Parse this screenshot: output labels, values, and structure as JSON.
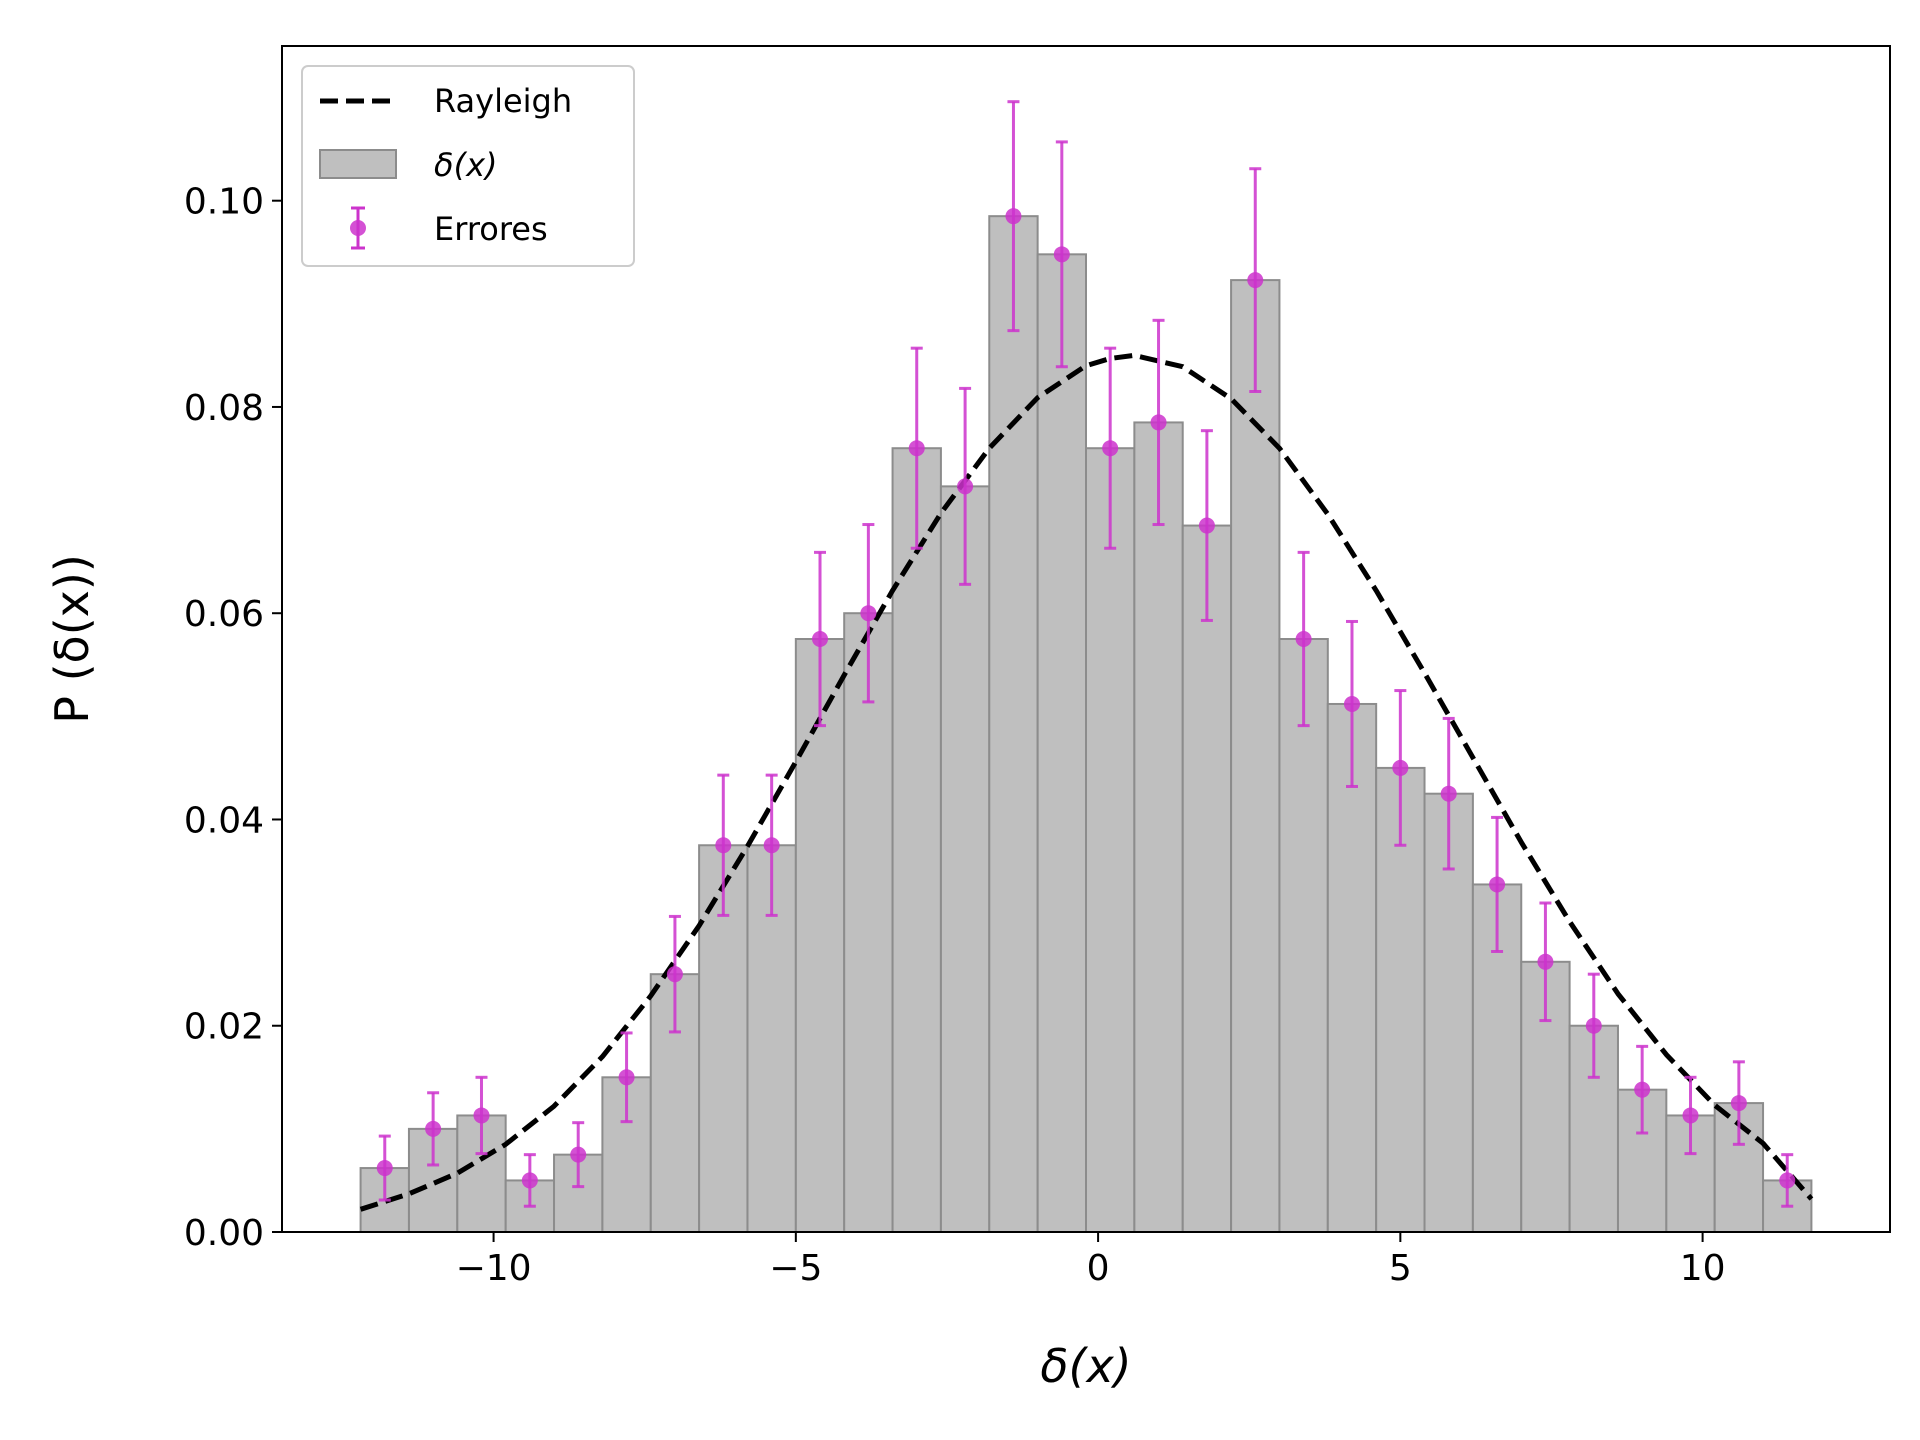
{
  "chart_data": {
    "type": "bar",
    "title": "",
    "xlabel": "δ(x)",
    "ylabel": "P (δ(x))",
    "xlim": [
      -13.5,
      13.1
    ],
    "ylim": [
      0,
      0.115
    ],
    "xticks": [
      -10,
      -5,
      0,
      5,
      10
    ],
    "xtick_labels": [
      "−10",
      "−5",
      "0",
      "5",
      "10"
    ],
    "yticks": [
      0,
      0.02,
      0.04,
      0.06,
      0.08,
      0.1
    ],
    "ytick_labels": [
      "0.00",
      "0.02",
      "0.04",
      "0.06",
      "0.08",
      "0.10"
    ],
    "grid": false,
    "legend_position": "top-left",
    "legend": [
      {
        "label": "Rayleigh",
        "kind": "line"
      },
      {
        "label": "δ(x)",
        "kind": "bar"
      },
      {
        "label": "Errores",
        "kind": "errorbar"
      }
    ],
    "bin_edges": [
      -12.2,
      -11.4,
      -10.6,
      -9.8,
      -9.0,
      -8.2,
      -7.4,
      -6.6,
      -5.8,
      -5.0,
      -4.2,
      -3.4,
      -2.6,
      -1.8,
      -1.0,
      -0.2,
      0.6,
      1.4,
      2.2,
      3.0,
      3.8,
      4.6,
      5.4,
      6.2,
      7.0,
      7.8,
      8.6,
      9.4,
      10.2,
      11.0,
      11.8
    ],
    "histogram": {
      "name": "δ(x)",
      "values": [
        0.0062,
        0.01,
        0.0113,
        0.005,
        0.0075,
        0.015,
        0.025,
        0.0375,
        0.0375,
        0.0575,
        0.06,
        0.076,
        0.0723,
        0.0985,
        0.0948,
        0.076,
        0.0785,
        0.0685,
        0.0923,
        0.0575,
        0.0512,
        0.045,
        0.0425,
        0.0337,
        0.0262,
        0.02,
        0.0138,
        0.0113,
        0.0125,
        0.005
      ],
      "color": "#bfbfbf",
      "edge_color": "#8c8c8c"
    },
    "errorbars": {
      "name": "Errores",
      "x": [
        -11.8,
        -11.0,
        -10.2,
        -9.4,
        -8.6,
        -7.8,
        -7.0,
        -6.2,
        -5.4,
        -4.6,
        -3.8,
        -3.0,
        -2.2,
        -1.4,
        -0.6,
        0.2,
        1.0,
        1.8,
        2.6,
        3.4,
        4.2,
        5.0,
        5.8,
        6.6,
        7.4,
        8.2,
        9.0,
        9.8,
        10.6,
        11.4
      ],
      "y": [
        0.0062,
        0.01,
        0.0113,
        0.005,
        0.0075,
        0.015,
        0.025,
        0.0375,
        0.0375,
        0.0575,
        0.06,
        0.076,
        0.0723,
        0.0985,
        0.0948,
        0.076,
        0.0785,
        0.0685,
        0.0923,
        0.0575,
        0.0512,
        0.045,
        0.0425,
        0.0337,
        0.0262,
        0.02,
        0.0138,
        0.0113,
        0.0125,
        0.005
      ],
      "yerr": [
        0.0031,
        0.0035,
        0.0037,
        0.0025,
        0.0031,
        0.0043,
        0.0056,
        0.0068,
        0.0068,
        0.0084,
        0.0086,
        0.0097,
        0.0095,
        0.0111,
        0.0109,
        0.0097,
        0.0099,
        0.0092,
        0.0108,
        0.0084,
        0.008,
        0.0075,
        0.0073,
        0.0065,
        0.0057,
        0.005,
        0.0042,
        0.0037,
        0.004,
        0.0025
      ],
      "color": "#cc33cc"
    },
    "fit_curve": {
      "name": "Rayleigh",
      "style": "dashed",
      "color": "#000000",
      "x": [
        -12.2,
        -11.4,
        -10.6,
        -9.8,
        -9.0,
        -8.2,
        -7.4,
        -6.6,
        -5.8,
        -5.0,
        -4.2,
        -3.4,
        -2.6,
        -1.8,
        -1.0,
        -0.2,
        0.2,
        0.6,
        1.4,
        2.2,
        3.0,
        3.8,
        4.6,
        5.4,
        6.2,
        7.0,
        7.8,
        8.6,
        9.4,
        10.2,
        11.0,
        11.8
      ],
      "y": [
        0.0022,
        0.0037,
        0.0057,
        0.0085,
        0.0122,
        0.017,
        0.0229,
        0.0297,
        0.0374,
        0.0456,
        0.054,
        0.0622,
        0.0697,
        0.076,
        0.0809,
        0.084,
        0.0847,
        0.085,
        0.0839,
        0.0808,
        0.076,
        0.0696,
        0.0622,
        0.0542,
        0.046,
        0.0378,
        0.0301,
        0.0231,
        0.0172,
        0.0123,
        0.0086,
        0.0032
      ]
    }
  }
}
